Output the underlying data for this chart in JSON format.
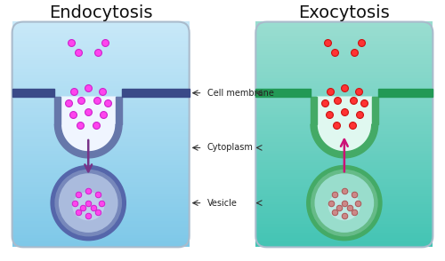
{
  "title_endo": "Endocytosis",
  "title_exo": "Exocytosis",
  "label_membrane": "Cell membrane",
  "label_cytoplasm": "Cytoplasm",
  "label_vesicle": "Vesicle",
  "bg_color": "#ffffff",
  "endo_cell_grad_top": "#c8e8f8",
  "endo_cell_grad_bot": "#7ec8e8",
  "endo_membrane_color": "#6677aa",
  "endo_membrane_top": "#3a4a88",
  "endo_pocket_fill": "#f0f5ff",
  "endo_vesicle_rim": "#5566aa",
  "endo_vesicle_mid": "#7788bb",
  "endo_vesicle_fill": "#aabbdd",
  "endo_vesicle_inner": "#c8d8f0",
  "endo_particle_color": "#ff44ee",
  "endo_particle_edge": "#cc22cc",
  "endo_arrow_color": "#773388",
  "exo_cell_grad_top": "#99ddd0",
  "exo_cell_grad_bot": "#44c4b4",
  "exo_membrane_color": "#44aa66",
  "exo_membrane_top": "#229955",
  "exo_pocket_fill": "#e0f8f0",
  "exo_vesicle_rim": "#44aa66",
  "exo_vesicle_mid": "#66bb88",
  "exo_vesicle_fill": "#99ddcc",
  "exo_vesicle_inner": "#cceeee",
  "exo_particle_color": "#ff3333",
  "exo_particle_edge": "#cc1111",
  "exo_vesicle_particle_color": "#cc8888",
  "exo_vesicle_particle_edge": "#aa5555",
  "exo_arrow_color": "#cc1177",
  "annotation_color": "#222222",
  "title_fontsize": 14,
  "label_fontsize": 7
}
